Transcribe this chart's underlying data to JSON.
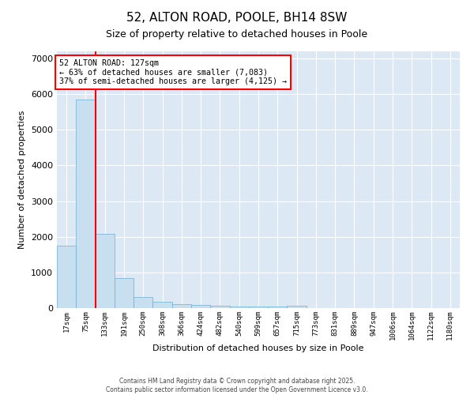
{
  "title": "52, ALTON ROAD, POOLE, BH14 8SW",
  "subtitle": "Size of property relative to detached houses in Poole",
  "xlabel": "Distribution of detached houses by size in Poole",
  "ylabel": "Number of detached properties",
  "bar_color": "#c8dff0",
  "bar_edge_color": "#6aafd6",
  "background_color": "#dde8f5",
  "grid_color": "#ffffff",
  "categories": [
    "17sqm",
    "75sqm",
    "133sqm",
    "191sqm",
    "250sqm",
    "308sqm",
    "366sqm",
    "424sqm",
    "482sqm",
    "540sqm",
    "599sqm",
    "657sqm",
    "715sqm",
    "773sqm",
    "831sqm",
    "889sqm",
    "947sqm",
    "1006sqm",
    "1064sqm",
    "1122sqm",
    "1180sqm"
  ],
  "values": [
    1750,
    5850,
    2080,
    840,
    320,
    185,
    115,
    80,
    65,
    55,
    50,
    45,
    60,
    0,
    0,
    0,
    0,
    0,
    0,
    0,
    0
  ],
  "property_label": "52 ALTON ROAD: 127sqm",
  "pct_smaller": 63,
  "n_smaller": 7083,
  "pct_larger": 37,
  "n_larger": 4125,
  "red_line_bar_index": 2,
  "ylim": [
    0,
    7200
  ],
  "yticks": [
    0,
    1000,
    2000,
    3000,
    4000,
    5000,
    6000,
    7000
  ],
  "footer_line1": "Contains HM Land Registry data © Crown copyright and database right 2025.",
  "footer_line2": "Contains public sector information licensed under the Open Government Licence v3.0."
}
